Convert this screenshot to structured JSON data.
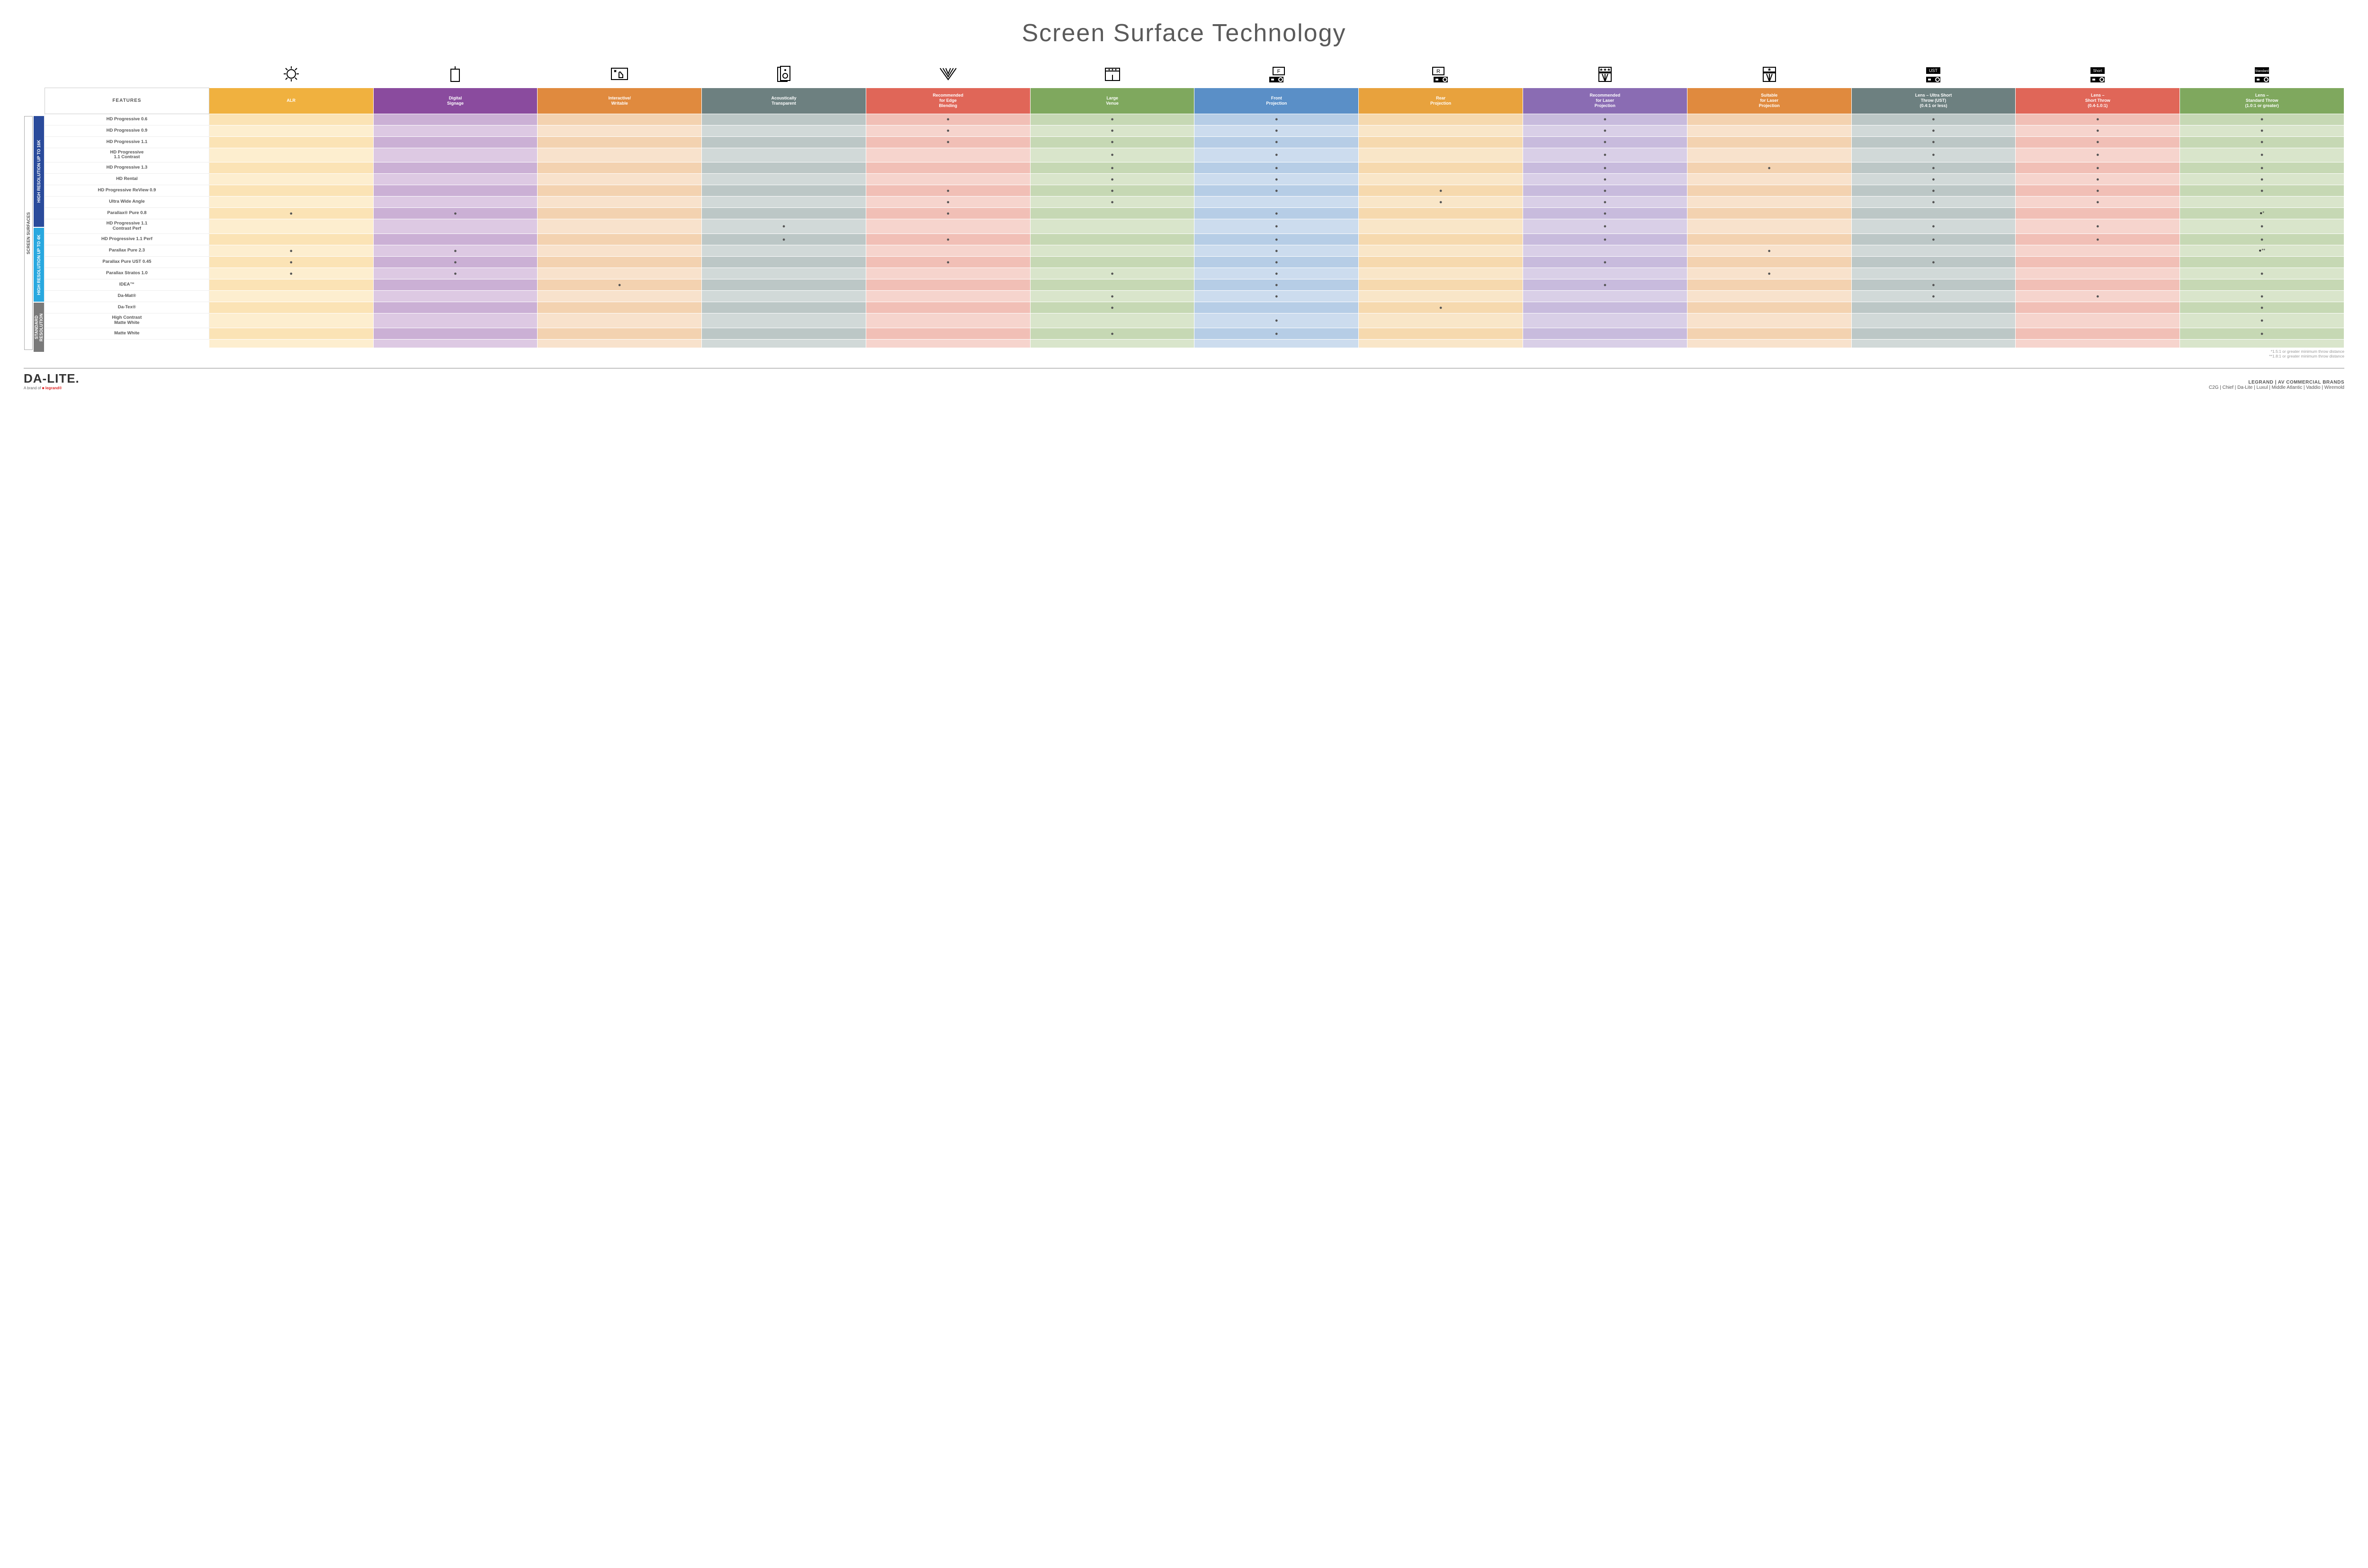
{
  "title": "Screen Surface Technology",
  "features_header": "FEATURES",
  "sidebar": {
    "outer": "SCREEN SURFACES",
    "groups": [
      {
        "label": "HIGH RESOLUTION UP TO 16K",
        "bg": "#2a4b9b",
        "rows": 9
      },
      {
        "label": "HIGH RESOLUTION UP TO 4K",
        "bg": "#29a8df",
        "rows": 6
      },
      {
        "label": "STANDARD\nRESOLUTION",
        "bg": "#7a7a7a",
        "rows": 4
      }
    ]
  },
  "columns": [
    {
      "key": "alr",
      "label": "ALR",
      "bg": "#f0b13f",
      "light": "#fbe3b5",
      "lighter": "#fdeecf",
      "icon": "bulb"
    },
    {
      "key": "signage",
      "label": "Digital\nSignage",
      "bg": "#8a4b9e",
      "light": "#cbb0d5",
      "lighter": "#ddc9e3",
      "icon": "sign"
    },
    {
      "key": "interactive",
      "label": "Interactive/\nWritable",
      "bg": "#e08a3e",
      "light": "#f3d2b0",
      "lighter": "#f8e2cc",
      "icon": "touch"
    },
    {
      "key": "acoustic",
      "label": "Acoustically\nTransparent",
      "bg": "#6d8080",
      "light": "#bcc7c6",
      "lighter": "#d1d9d8",
      "icon": "speaker"
    },
    {
      "key": "edge",
      "label": "Recommended\nfor Edge\nBlending",
      "bg": "#e06658",
      "light": "#f1bfb6",
      "lighter": "#f6d4cd",
      "icon": "fan"
    },
    {
      "key": "large",
      "label": "Large\nVenue",
      "bg": "#7fa85e",
      "light": "#c6d8b4",
      "lighter": "#d9e5cb",
      "icon": "stage"
    },
    {
      "key": "front",
      "label": "Front\nProjection",
      "bg": "#5a8fc7",
      "light": "#b6cde6",
      "lighter": "#ccdcee",
      "icon": "front"
    },
    {
      "key": "rear",
      "label": "Rear\nProjection",
      "bg": "#e8a23d",
      "light": "#f6d9ae",
      "lighter": "#f9e6c8",
      "icon": "rear"
    },
    {
      "key": "reclaser",
      "label": "Recommended\nfor Laser\nProjection",
      "bg": "#8a6cb3",
      "light": "#c8bbdd",
      "lighter": "#d9cfe7",
      "icon": "laser3"
    },
    {
      "key": "suitlaser",
      "label": "Suitable\nfor Laser\nProjection",
      "bg": "#e08a3e",
      "light": "#f3d2b0",
      "lighter": "#f8e2cc",
      "icon": "laser1"
    },
    {
      "key": "ust",
      "label": "Lens – Ultra Short\nThrow (UST)\n(0.4:1 or less)",
      "bg": "#6d8080",
      "light": "#bcc7c6",
      "lighter": "#d1d9d8",
      "icon": "ust"
    },
    {
      "key": "short",
      "label": "Lens –\nShort Throw\n(0.4-1.0:1)",
      "bg": "#e06658",
      "light": "#f1bfb6",
      "lighter": "#f6d4cd",
      "icon": "short"
    },
    {
      "key": "std",
      "label": "Lens –\nStandard Throw\n(1.0:1 or greater)",
      "bg": "#7fa85e",
      "light": "#c6d8b4",
      "lighter": "#d9e5cb",
      "icon": "standard"
    }
  ],
  "rows": [
    {
      "label": "HD Progressive 0.6",
      "dots": [
        "edge",
        "large",
        "front",
        "reclaser",
        "ust",
        "short",
        "std"
      ]
    },
    {
      "label": "HD Progressive 0.9",
      "dots": [
        "edge",
        "large",
        "front",
        "reclaser",
        "ust",
        "short",
        "std"
      ]
    },
    {
      "label": "HD Progressive 1.1",
      "dots": [
        "edge",
        "large",
        "front",
        "reclaser",
        "ust",
        "short",
        "std"
      ]
    },
    {
      "label": "HD Progressive\n1.1 Contrast",
      "dots": [
        "large",
        "front",
        "reclaser",
        "ust",
        "short",
        "std"
      ]
    },
    {
      "label": "HD Progressive 1.3",
      "dots": [
        "large",
        "front",
        "reclaser",
        "suitlaser",
        "ust",
        "short",
        "std"
      ]
    },
    {
      "label": "HD Rental",
      "dots": [
        "large",
        "front",
        "reclaser",
        "ust",
        "short",
        "std"
      ]
    },
    {
      "label": "HD Progressive ReView 0.9",
      "dots": [
        "edge",
        "large",
        "front",
        "rear",
        "reclaser",
        "ust",
        "short",
        "std"
      ]
    },
    {
      "label": "Ultra Wide Angle",
      "dots": [
        "edge",
        "large",
        "rear",
        "reclaser",
        "ust",
        "short"
      ]
    },
    {
      "label": "Parallax® Pure 0.8",
      "dots": [
        "alr",
        "signage",
        "edge",
        "front",
        "reclaser"
      ],
      "suffix": {
        "std": "●*"
      }
    },
    {
      "label": "HD Progressive 1.1\nContrast Perf",
      "dots": [
        "acoustic",
        "front",
        "reclaser",
        "ust",
        "short",
        "std"
      ]
    },
    {
      "label": "HD Progressive 1.1 Perf",
      "dots": [
        "acoustic",
        "edge",
        "front",
        "reclaser",
        "ust",
        "short",
        "std"
      ]
    },
    {
      "label": "Parallax Pure 2.3",
      "dots": [
        "alr",
        "signage",
        "front",
        "suitlaser"
      ],
      "suffix": {
        "std": "●**"
      }
    },
    {
      "label": "Parallax Pure UST 0.45",
      "dots": [
        "alr",
        "signage",
        "edge",
        "front",
        "reclaser",
        "ust"
      ]
    },
    {
      "label": "Parallax Stratos 1.0",
      "dots": [
        "alr",
        "signage",
        "large",
        "front",
        "suitlaser",
        "std"
      ]
    },
    {
      "label": "IDEA™",
      "dots": [
        "interactive",
        "front",
        "reclaser",
        "ust"
      ]
    },
    {
      "label": "Da-Mat®",
      "dots": [
        "large",
        "front",
        "ust",
        "short",
        "std"
      ]
    },
    {
      "label": "Da-Tex®",
      "dots": [
        "large",
        "rear",
        "std"
      ]
    },
    {
      "label": "High Contrast\nMatte White",
      "dots": [
        "front",
        "std"
      ]
    },
    {
      "label": "Matte White",
      "dots": [
        "large",
        "front",
        "std"
      ]
    }
  ],
  "footnotes": [
    "*1.5:1 or greater minimum throw distance",
    "**1.8:1 or greater minimum throw distance"
  ],
  "footer": {
    "brand": "DA-LITE.",
    "brand_sub_prefix": "A brand of ",
    "brand_sub_red": "legrand®",
    "right_top": "LEGRAND | AV COMMERCIAL BRANDS",
    "right_bottom": "C2G  |  Chief  |  Da-Lite  |  Luxul  |  Middle Atlantic  |  Vaddio  |  Wiremold"
  },
  "title_fontsize": "52px"
}
